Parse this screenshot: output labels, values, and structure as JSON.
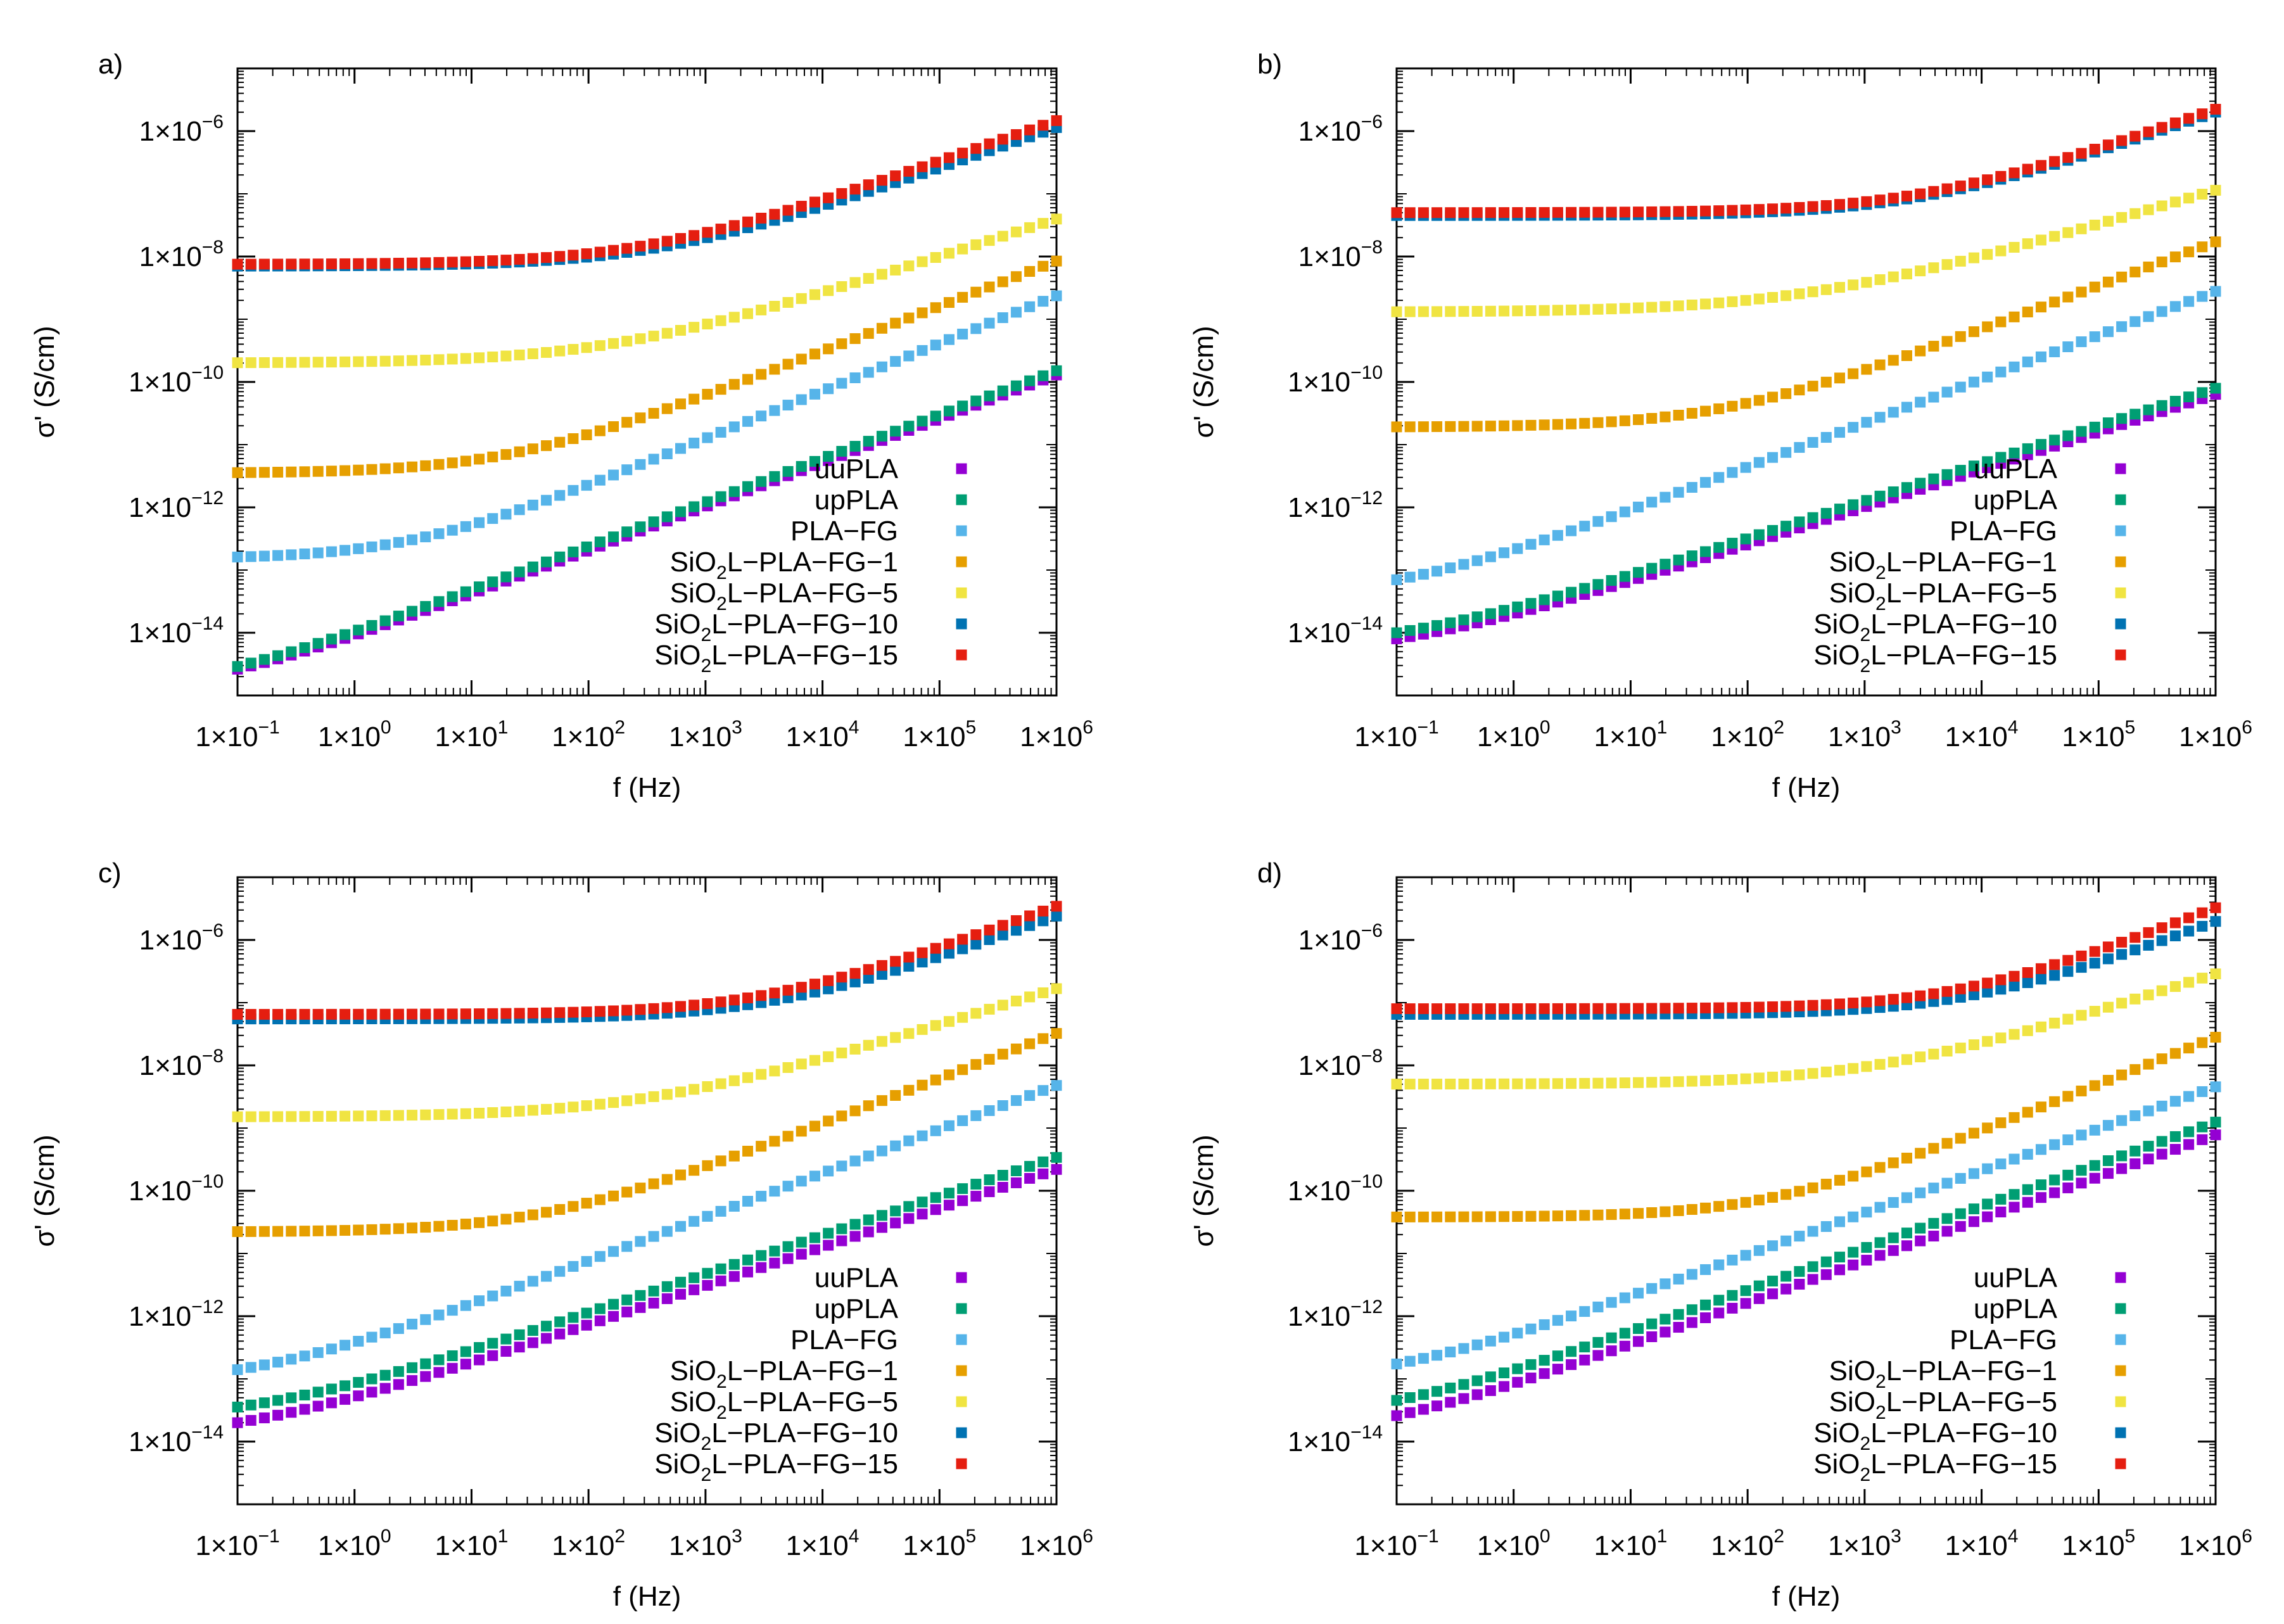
{
  "colors": {
    "uuPLA": "#9400d3",
    "upPLA": "#009e73",
    "PLA-FG": "#56b4e9",
    "SiO2L-PLA-FG-1": "#e69f00",
    "SiO2L-PLA-FG-5": "#f0e442",
    "SiO2L-PLA-FG-10": "#0072b2",
    "SiO2L-PLA-FG-15": "#e51e10"
  },
  "chart_data": [
    {
      "panel": "a)",
      "type": "scatter",
      "xlabel": "f (Hz)",
      "ylabel": "σ' (S/cm)",
      "xscale": "log",
      "yscale": "log",
      "xlim": [
        0.1,
        1000000
      ],
      "ylim": [
        1e-15,
        1e-05
      ],
      "xticks": [
        {
          "base": "1×10",
          "exp": "−1"
        },
        {
          "base": "1×10",
          "exp": "0"
        },
        {
          "base": "1×10",
          "exp": "1"
        },
        {
          "base": "1×10",
          "exp": "2"
        },
        {
          "base": "1×10",
          "exp": "3"
        },
        {
          "base": "1×10",
          "exp": "4"
        },
        {
          "base": "1×10",
          "exp": "5"
        },
        {
          "base": "1×10",
          "exp": "6"
        }
      ],
      "yticks": [
        {
          "base": "1×10",
          "exp": "−14"
        },
        {
          "base": "1×10",
          "exp": "−12"
        },
        {
          "base": "1×10",
          "exp": "−10"
        },
        {
          "base": "1×10",
          "exp": "−8"
        },
        {
          "base": "1×10",
          "exp": "−6"
        }
      ],
      "legend_position": "bottom-right",
      "series": [
        {
          "name": "uuPLA",
          "legend": [
            "uuPLA",
            "",
            ""
          ],
          "sigma_dc": 1e-15,
          "f_c": 0.05,
          "n": 0.7
        },
        {
          "name": "upPLA",
          "legend": [
            "upPLA",
            "",
            ""
          ],
          "sigma_dc": 1e-15,
          "f_c": 0.04,
          "n": 0.7
        },
        {
          "name": "PLA-FG",
          "legend": [
            "PLA−FG",
            "",
            ""
          ],
          "sigma_dc": 1.5e-13,
          "f_c": 3,
          "n": 0.76
        },
        {
          "name": "SiO2L-PLA-FG-1",
          "legend": [
            "SiO",
            "2",
            "L−PLA−FG−1"
          ],
          "sigma_dc": 3.5e-12,
          "f_c": 20,
          "n": 0.72
        },
        {
          "name": "SiO2L-PLA-FG-5",
          "legend": [
            "SiO",
            "2",
            "L−PLA−FG−5"
          ],
          "sigma_dc": 2e-10,
          "f_c": 150,
          "n": 0.6
        },
        {
          "name": "SiO2L-PLA-FG-10",
          "legend": [
            "SiO",
            "2",
            "L−PLA−FG−10"
          ],
          "sigma_dc": 7e-09,
          "f_c": 400,
          "n": 0.65
        },
        {
          "name": "SiO2L-PLA-FG-15",
          "legend": [
            "SiO",
            "2",
            "L−PLA−FG−15"
          ],
          "sigma_dc": 7.5e-09,
          "f_c": 300,
          "n": 0.65
        }
      ]
    },
    {
      "panel": "b)",
      "type": "scatter",
      "xlabel": "f (Hz)",
      "ylabel": "σ' (S/cm)",
      "xscale": "log",
      "yscale": "log",
      "xlim": [
        0.1,
        1000000
      ],
      "ylim": [
        1e-15,
        1e-05
      ],
      "xticks": [
        {
          "base": "1×10",
          "exp": "−1"
        },
        {
          "base": "1×10",
          "exp": "0"
        },
        {
          "base": "1×10",
          "exp": "1"
        },
        {
          "base": "1×10",
          "exp": "2"
        },
        {
          "base": "1×10",
          "exp": "3"
        },
        {
          "base": "1×10",
          "exp": "4"
        },
        {
          "base": "1×10",
          "exp": "5"
        },
        {
          "base": "1×10",
          "exp": "6"
        }
      ],
      "yticks": [
        {
          "base": "1×10",
          "exp": "−14"
        },
        {
          "base": "1×10",
          "exp": "−12"
        },
        {
          "base": "1×10",
          "exp": "−10"
        },
        {
          "base": "1×10",
          "exp": "−8"
        },
        {
          "base": "1×10",
          "exp": "−6"
        }
      ],
      "legend_position": "bottom-right",
      "series": [
        {
          "name": "uuPLA",
          "legend": [
            "uuPLA",
            "",
            ""
          ],
          "sigma_dc": 4e-15,
          "f_c": 0.1,
          "n": 0.6
        },
        {
          "name": "upPLA",
          "legend": [
            "upPLA",
            "",
            ""
          ],
          "sigma_dc": 5e-15,
          "f_c": 0.1,
          "n": 0.6
        },
        {
          "name": "PLA-FG",
          "legend": [
            "PLA−FG",
            "",
            ""
          ],
          "sigma_dc": 3.5e-14,
          "f_c": 0.1,
          "n": 0.7
        },
        {
          "name": "SiO2L-PLA-FG-1",
          "legend": [
            "SiO",
            "2",
            "L−PLA−FG−1"
          ],
          "sigma_dc": 1.9e-11,
          "f_c": 60,
          "n": 0.7
        },
        {
          "name": "SiO2L-PLA-FG-5",
          "legend": [
            "SiO",
            "2",
            "L−PLA−FG−5"
          ],
          "sigma_dc": 1.3e-09,
          "f_c": 300,
          "n": 0.55
        },
        {
          "name": "SiO2L-PLA-FG-10",
          "legend": [
            "SiO",
            "2",
            "L−PLA−FG−10"
          ],
          "sigma_dc": 4.5e-08,
          "f_c": 3000,
          "n": 0.65
        },
        {
          "name": "SiO2L-PLA-FG-15",
          "legend": [
            "SiO",
            "2",
            "L−PLA−FG−15"
          ],
          "sigma_dc": 5e-08,
          "f_c": 3000,
          "n": 0.65
        }
      ]
    },
    {
      "panel": "c)",
      "type": "scatter",
      "xlabel": "f (Hz)",
      "ylabel": "σ' (S/cm)",
      "xscale": "log",
      "yscale": "log",
      "xlim": [
        0.1,
        1000000
      ],
      "ylim": [
        1e-15,
        1e-05
      ],
      "xticks": [
        {
          "base": "1×10",
          "exp": "−1"
        },
        {
          "base": "1×10",
          "exp": "0"
        },
        {
          "base": "1×10",
          "exp": "1"
        },
        {
          "base": "1×10",
          "exp": "2"
        },
        {
          "base": "1×10",
          "exp": "3"
        },
        {
          "base": "1×10",
          "exp": "4"
        },
        {
          "base": "1×10",
          "exp": "5"
        },
        {
          "base": "1×10",
          "exp": "6"
        }
      ],
      "yticks": [
        {
          "base": "1×10",
          "exp": "−14"
        },
        {
          "base": "1×10",
          "exp": "−12"
        },
        {
          "base": "1×10",
          "exp": "−10"
        },
        {
          "base": "1×10",
          "exp": "−8"
        },
        {
          "base": "1×10",
          "exp": "−6"
        }
      ],
      "legend_position": "bottom-right",
      "series": [
        {
          "name": "uuPLA",
          "legend": [
            "uuPLA",
            "",
            ""
          ],
          "sigma_dc": 1e-14,
          "f_c": 0.1,
          "n": 0.62
        },
        {
          "name": "upPLA",
          "legend": [
            "upPLA",
            "",
            ""
          ],
          "sigma_dc": 2e-14,
          "f_c": 0.15,
          "n": 0.62
        },
        {
          "name": "PLA-FG",
          "legend": [
            "PLA−FG",
            "",
            ""
          ],
          "sigma_dc": 8e-14,
          "f_c": 0.15,
          "n": 0.7
        },
        {
          "name": "SiO2L-PLA-FG-1",
          "legend": [
            "SiO",
            "2",
            "L−PLA−FG−1"
          ],
          "sigma_dc": 2.2e-11,
          "f_c": 40,
          "n": 0.72
        },
        {
          "name": "SiO2L-PLA-FG-5",
          "legend": [
            "SiO",
            "2",
            "L−PLA−FG−5"
          ],
          "sigma_dc": 1.5e-09,
          "f_c": 300,
          "n": 0.58
        },
        {
          "name": "SiO2L-PLA-FG-10",
          "legend": [
            "SiO",
            "2",
            "L−PLA−FG−10"
          ],
          "sigma_dc": 5.5e-08,
          "f_c": 4000,
          "n": 0.68
        },
        {
          "name": "SiO2L-PLA-FG-15",
          "legend": [
            "SiO",
            "2",
            "L−PLA−FG−15"
          ],
          "sigma_dc": 6.5e-08,
          "f_c": 3000,
          "n": 0.68
        }
      ]
    },
    {
      "panel": "d)",
      "type": "scatter",
      "xlabel": "f (Hz)",
      "ylabel": "σ' (S/cm)",
      "xscale": "log",
      "yscale": "log",
      "xlim": [
        0.1,
        1000000
      ],
      "ylim": [
        1e-15,
        1e-05
      ],
      "xticks": [
        {
          "base": "1×10",
          "exp": "−1"
        },
        {
          "base": "1×10",
          "exp": "0"
        },
        {
          "base": "1×10",
          "exp": "1"
        },
        {
          "base": "1×10",
          "exp": "2"
        },
        {
          "base": "1×10",
          "exp": "3"
        },
        {
          "base": "1×10",
          "exp": "4"
        },
        {
          "base": "1×10",
          "exp": "5"
        },
        {
          "base": "1×10",
          "exp": "6"
        }
      ],
      "yticks": [
        {
          "base": "1×10",
          "exp": "−14"
        },
        {
          "base": "1×10",
          "exp": "−12"
        },
        {
          "base": "1×10",
          "exp": "−10"
        },
        {
          "base": "1×10",
          "exp": "−8"
        },
        {
          "base": "1×10",
          "exp": "−6"
        }
      ],
      "legend_position": "bottom-right",
      "series": [
        {
          "name": "uuPLA",
          "legend": [
            "uuPLA",
            "",
            ""
          ],
          "sigma_dc": 1e-14,
          "f_c": 0.05,
          "n": 0.67
        },
        {
          "name": "upPLA",
          "legend": [
            "upPLA",
            "",
            ""
          ],
          "sigma_dc": 2e-14,
          "f_c": 0.07,
          "n": 0.67
        },
        {
          "name": "PLA-FG",
          "legend": [
            "PLA−FG",
            "",
            ""
          ],
          "sigma_dc": 8e-14,
          "f_c": 0.08,
          "n": 0.67
        },
        {
          "name": "SiO2L-PLA-FG-1",
          "legend": [
            "SiO",
            "2",
            "L−PLA−FG−1"
          ],
          "sigma_dc": 3.8e-11,
          "f_c": 150,
          "n": 0.75
        },
        {
          "name": "SiO2L-PLA-FG-5",
          "legend": [
            "SiO",
            "2",
            "L−PLA−FG−5"
          ],
          "sigma_dc": 5e-09,
          "f_c": 1200,
          "n": 0.6
        },
        {
          "name": "SiO2L-PLA-FG-10",
          "legend": [
            "SiO",
            "2",
            "L−PLA−FG−10"
          ],
          "sigma_dc": 6.5e-08,
          "f_c": 8000,
          "n": 0.7
        },
        {
          "name": "SiO2L-PLA-FG-15",
          "legend": [
            "SiO",
            "2",
            "L−PLA−FG−15"
          ],
          "sigma_dc": 8e-08,
          "f_c": 6000,
          "n": 0.72
        }
      ]
    }
  ]
}
